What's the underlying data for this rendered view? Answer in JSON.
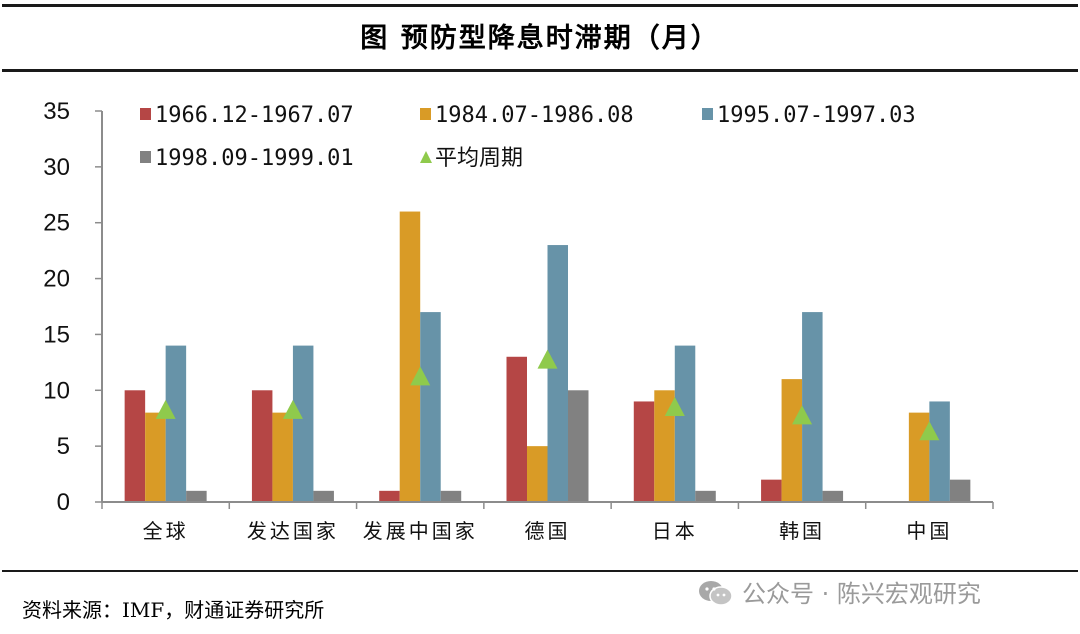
{
  "title": "图  预防型降息时滞期（月）",
  "source": "资料来源：IMF，财通证券研究所",
  "watermark": "公众号 · 陈兴宏观研究",
  "colors": {
    "s1": "#b54645",
    "s2": "#d99b26",
    "s3": "#6793a8",
    "s4": "#818181",
    "avg": "#8fca4c",
    "axis": "#8c8c8c"
  },
  "chart_data": {
    "type": "bar",
    "title": "预防型降息时滞期（月）",
    "xlabel": "",
    "ylabel": "",
    "ylim": [
      0,
      35
    ],
    "yticks": [
      0,
      5,
      10,
      15,
      20,
      25,
      30,
      35
    ],
    "grid": false,
    "legend_position": "top",
    "categories": [
      "全球",
      "发达国家",
      "发展中国家",
      "德国",
      "日本",
      "韩国",
      "中国"
    ],
    "series": [
      {
        "name": "1966.12-1967.07",
        "type": "bar",
        "values": [
          10,
          10,
          1,
          13,
          9,
          2,
          0
        ]
      },
      {
        "name": "1984.07-1986.08",
        "type": "bar",
        "values": [
          8,
          8,
          26,
          5,
          10,
          11,
          8
        ]
      },
      {
        "name": "1995.07-1997.03",
        "type": "bar",
        "values": [
          14,
          14,
          17,
          23,
          14,
          17,
          9
        ]
      },
      {
        "name": "1998.09-1999.01",
        "type": "bar",
        "values": [
          1,
          1,
          1,
          10,
          1,
          1,
          2
        ]
      },
      {
        "name": "平均周期",
        "type": "scatter",
        "marker": "triangle",
        "values": [
          8.25,
          8.25,
          11.25,
          12.75,
          8.5,
          7.75,
          6.33
        ]
      }
    ]
  }
}
